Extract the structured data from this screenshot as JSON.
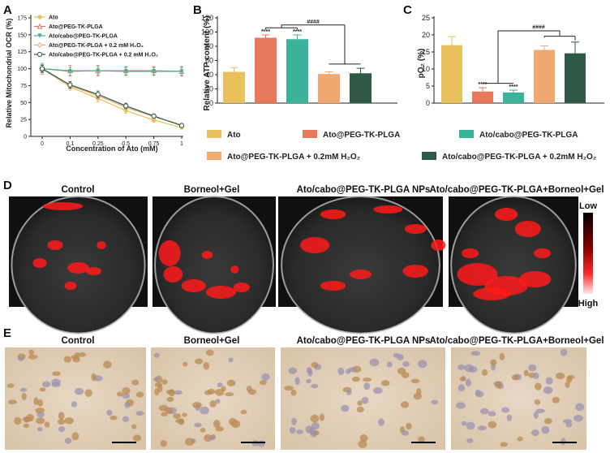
{
  "panel_letters": {
    "a": "A",
    "b": "B",
    "c": "C",
    "d": "D",
    "e": "E"
  },
  "chart_data": [
    {
      "type": "line",
      "xlabel": "Concentration of Ato (mM)",
      "ylabel": "Relative Mitochondrial OCR (%)",
      "categories": [
        "0",
        "0.1",
        "0.25",
        "0.5",
        "0.75",
        "1"
      ],
      "yticks": [
        "0",
        "25",
        "50",
        "75",
        "100",
        "125",
        "150",
        "175"
      ],
      "ylim": [
        0,
        175
      ],
      "legend_position": "top-left",
      "series": [
        {
          "name": "Ato",
          "color": "#e8c15a",
          "marker": "circle",
          "values": [
            100,
            73,
            56,
            38,
            24,
            13
          ],
          "errors": [
            5,
            5,
            5,
            4,
            3,
            2
          ]
        },
        {
          "name": "Ato@PEG-TK-PLGA",
          "color": "#e8785a",
          "marker": "triangle",
          "values": [
            100,
            97,
            97,
            97,
            97,
            96
          ],
          "errors": [
            8,
            8,
            8,
            6,
            6,
            7
          ]
        },
        {
          "name": "Ato/cabo@PEG-TK-PLGA",
          "color": "#3bb39a",
          "marker": "triangle-down",
          "values": [
            100,
            96,
            97,
            96,
            96,
            96
          ],
          "errors": [
            6,
            6,
            6,
            6,
            6,
            6
          ]
        },
        {
          "name": "Ato@PEG-TK-PLGA + 0.2 mM H₂O₂",
          "color": "#f0a870",
          "marker": "diamond",
          "values": [
            100,
            75,
            60,
            43,
            29,
            17
          ],
          "errors": [
            5,
            5,
            5,
            4,
            3,
            2
          ]
        },
        {
          "name": "Ato/cabo@PEG-TK-PLGA + 0.2 mM H₂O₂",
          "color": "#2f5a48",
          "marker": "circle-open",
          "values": [
            100,
            76,
            62,
            45,
            30,
            16
          ],
          "errors": [
            5,
            5,
            5,
            4,
            3,
            2
          ]
        }
      ]
    },
    {
      "type": "bar",
      "ylabel": "Relative ATP content (%)",
      "yticks": [
        "0",
        "20",
        "40",
        "60",
        "80",
        "100",
        "120"
      ],
      "ylim": [
        0,
        120
      ],
      "series": [
        {
          "name": "Ato",
          "color": "#e8c15a",
          "value": 44,
          "error": 6,
          "stars": ""
        },
        {
          "name": "Ato@PEG-TK-PLGA",
          "color": "#e8785a",
          "value": 92,
          "error": 4,
          "stars": "****"
        },
        {
          "name": "Ato/cabo@PEG-TK-PLGA",
          "color": "#3bb39a",
          "value": 90,
          "error": 6,
          "stars": "****"
        },
        {
          "name": "Ato@PEG-TK-PLGA + 0.2mM H₂O₂",
          "color": "#f0a870",
          "value": 41,
          "error": 3,
          "stars": ""
        },
        {
          "name": "Ato/cabo@PEG-TK-PLGA + 0.2mM H₂O₂",
          "color": "#2f5a48",
          "value": 42,
          "error": 7,
          "stars": ""
        }
      ],
      "bracket_label": "####"
    },
    {
      "type": "bar",
      "ylabel": "pO₂ (%)",
      "yticks": [
        "0",
        "5",
        "10",
        "15",
        "20",
        "25"
      ],
      "ylim": [
        0,
        25
      ],
      "series": [
        {
          "name": "Ato",
          "color": "#e8c15a",
          "value": 17,
          "error": 2.5,
          "stars": ""
        },
        {
          "name": "Ato@PEG-TK-PLGA",
          "color": "#e8785a",
          "value": 3.4,
          "error": 1.1,
          "stars": "****"
        },
        {
          "name": "Ato/cabo@PEG-TK-PLGA",
          "color": "#3bb39a",
          "value": 3.1,
          "error": 0.7,
          "stars": "****"
        },
        {
          "name": "Ato@PEG-TK-PLGA + 0.2mM H₂O₂",
          "color": "#f0a870",
          "value": 15.6,
          "error": 1.2,
          "stars": ""
        },
        {
          "name": "Ato/cabo@PEG-TK-PLGA + 0.2mM H₂O₂",
          "color": "#2f5a48",
          "value": 14.6,
          "error": 3.3,
          "stars": ""
        }
      ],
      "bracket_label": "####"
    }
  ],
  "shared_legend": {
    "row1": [
      "Ato",
      "Ato@PEG-TK-PLGA",
      "Ato/cabo@PEG-TK-PLGA"
    ],
    "row2": [
      "Ato@PEG-TK-PLGA + 0.2mM H₂O₂",
      "Ato/cabo@PEG-TK-PLGA + 0.2mM H₂O₂"
    ],
    "colors": [
      "#e8c15a",
      "#e8785a",
      "#3bb39a",
      "#f0a870",
      "#2f5a48"
    ]
  },
  "imaging": {
    "row_d_titles": [
      "Control",
      "Borneol+Gel",
      "Ato/cabo@PEG-TK-PLGA NPs",
      "Ato/cabo@PEG-TK-PLGA+Borneol+Gel"
    ],
    "colorbar_low": "Low",
    "colorbar_high": "High",
    "row_e_titles": [
      "Control",
      "Borneol+Gel",
      "Ato/cabo@PEG-TK-PLGA NPs",
      "Ato/cabo@PEG-TK-PLGA+Borneol+Gel"
    ]
  }
}
